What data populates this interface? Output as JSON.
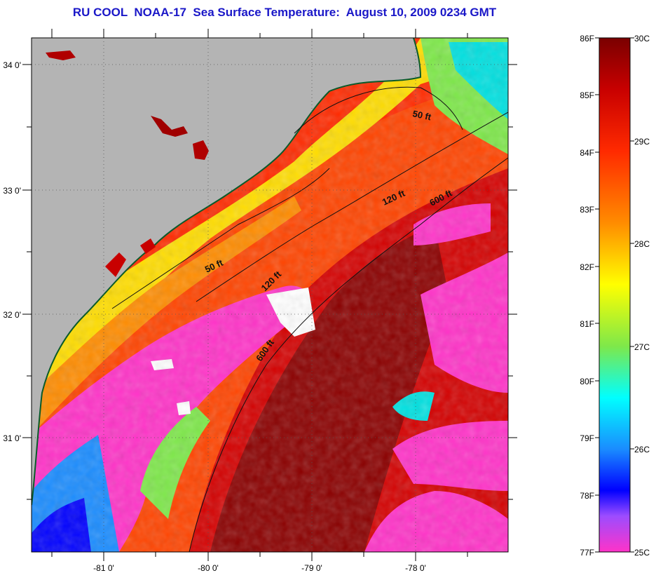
{
  "header": {
    "title": "RU COOL  NOAA-17  Sea Surface Temperature:  August 10, 2009 0234 GMT"
  },
  "map": {
    "lat_labels": [
      "34 0'",
      "33 0'",
      "32 0'",
      "31 0'"
    ],
    "lon_labels": [
      "-81 0'",
      "-80 0'",
      "-79 0'",
      "-78 0'"
    ],
    "isobath_labels": [
      "50 ft",
      "120 ft",
      "600 ft",
      "50 ft",
      "120 ft",
      "600 ft"
    ],
    "colors": {
      "land": "#b4b4b4",
      "cloud_mask": "#ffffff",
      "coldest": "#ff33c8",
      "warmest": "#8b0000"
    }
  },
  "colorbar": {
    "fahrenheit_labels": [
      "86F",
      "85F",
      "84F",
      "83F",
      "82F",
      "81F",
      "80F",
      "79F",
      "78F",
      "77F"
    ],
    "celsius_labels": [
      "30C",
      "29C",
      "28C",
      "27C",
      "26C",
      "25C"
    ]
  }
}
